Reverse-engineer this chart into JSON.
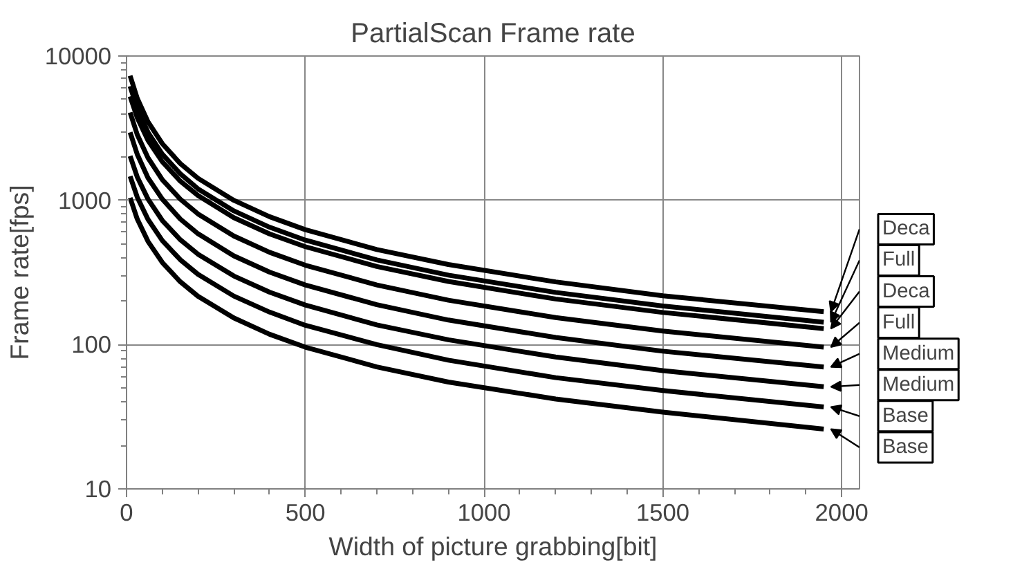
{
  "chart_data": {
    "type": "line",
    "title": "PartialScan Frame rate",
    "xlabel": "Width of picture grabbing[bit]",
    "ylabel": "Frame rate[fps]",
    "x": [
      10,
      30,
      60,
      100,
      150,
      200,
      300,
      400,
      500,
      700,
      900,
      1200,
      1500,
      1950
    ],
    "xlim": [
      0,
      2050
    ],
    "xticks": [
      0,
      500,
      1000,
      1500,
      2000
    ],
    "ylim": [
      10,
      10000
    ],
    "yticks": [
      10,
      100,
      1000,
      10000
    ],
    "log": "y",
    "grid": true,
    "legend": "right",
    "marker": "none",
    "line_style": "solid",
    "series": [
      {
        "name": "Deca",
        "color": "#000000",
        "values": [
          7300,
          5090,
          3500,
          2470,
          1800,
          1420,
          1000,
          770,
          626,
          456,
          359,
          272,
          218,
          169
        ]
      },
      {
        "name": "Full",
        "color": "#000000",
        "values": [
          6170,
          4300,
          2960,
          2090,
          1530,
          1200,
          845,
          651,
          530,
          386,
          303,
          230,
          185,
          143
        ]
      },
      {
        "name": "Deca",
        "color": "#000000",
        "values": [
          5250,
          3730,
          2600,
          1850,
          1360,
          1080,
          758,
          585,
          477,
          348,
          274,
          207,
          167,
          129
        ]
      },
      {
        "name": "Full",
        "color": "#000000",
        "values": [
          4060,
          2850,
          1970,
          1390,
          1020,
          804,
          566,
          436,
          355,
          259,
          203,
          154,
          124,
          96
        ]
      },
      {
        "name": "Medium",
        "color": "#000000",
        "values": [
          2960,
          2080,
          1430,
          1020,
          743,
          586,
          412,
          318,
          259,
          189,
          148,
          112,
          90,
          70
        ]
      },
      {
        "name": "Medium",
        "color": "#000000",
        "values": [
          2030,
          1450,
          1020,
          725,
          534,
          423,
          299,
          231,
          188,
          137,
          108,
          82,
          66,
          51
        ]
      },
      {
        "name": "Base",
        "color": "#000000",
        "values": [
          1470,
          1050,
          737,
          526,
          388,
          307,
          217,
          168,
          136,
          100,
          78,
          59,
          48,
          37
        ]
      },
      {
        "name": "Base",
        "color": "#000000",
        "values": [
          1040,
          741,
          519,
          371,
          273,
          216,
          153,
          118,
          96,
          70,
          55,
          42,
          34,
          26
        ]
      }
    ]
  }
}
